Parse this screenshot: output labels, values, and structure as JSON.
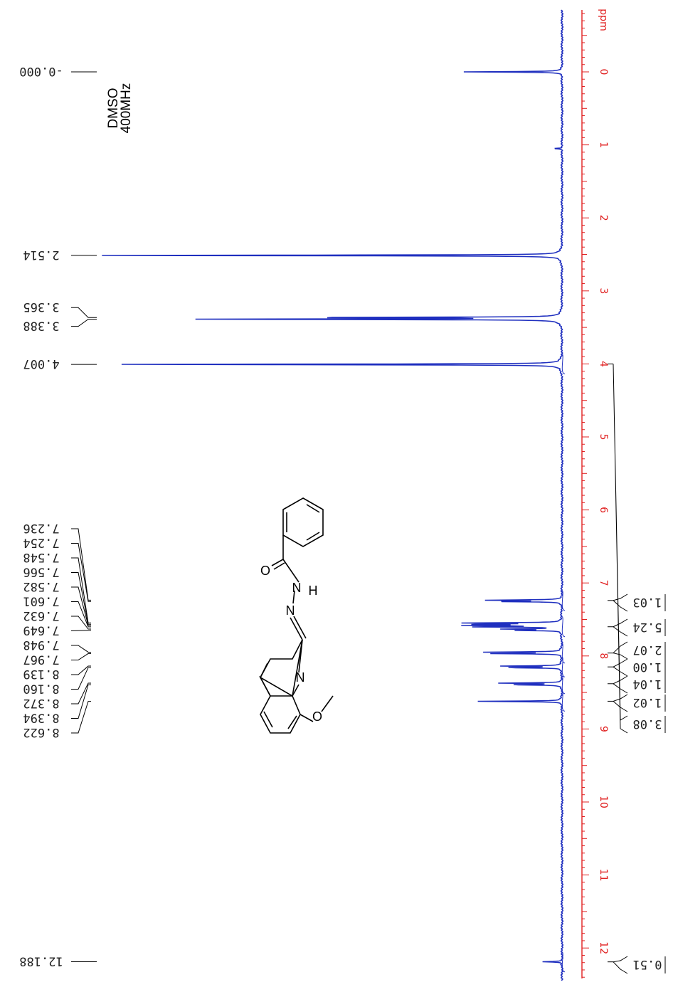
{
  "chart_data": {
    "type": "line",
    "title": "",
    "xlabel": "",
    "ylabel": "",
    "axis": {
      "unit": "ppm",
      "ticks": [
        "0",
        "1",
        "2",
        "3",
        "4",
        "5",
        "6",
        "7",
        "8",
        "9",
        "10",
        "11",
        "12"
      ],
      "range": [
        -0.85,
        12.45
      ],
      "color": "#e02020"
    },
    "solvent": "DMSO",
    "frequency": "400MHz",
    "series": [
      {
        "color": "#1f2fbf",
        "peaks": [
          {
            "ppm": 0.0,
            "intensity": 0.21
          },
          {
            "ppm": 1.05,
            "intensity": 0.02
          },
          {
            "ppm": 2.514,
            "intensity": 1.0
          },
          {
            "ppm": 3.365,
            "intensity": 0.6
          },
          {
            "ppm": 3.388,
            "intensity": 0.8
          },
          {
            "ppm": 4.007,
            "intensity": 1.0
          },
          {
            "ppm": 7.236,
            "intensity": 0.16
          },
          {
            "ppm": 7.254,
            "intensity": 0.15
          },
          {
            "ppm": 7.548,
            "intensity": 0.2
          },
          {
            "ppm": 7.566,
            "intensity": 0.2
          },
          {
            "ppm": 7.582,
            "intensity": 0.19
          },
          {
            "ppm": 7.601,
            "intensity": 0.19
          },
          {
            "ppm": 7.632,
            "intensity": 0.12
          },
          {
            "ppm": 7.649,
            "intensity": 0.11
          },
          {
            "ppm": 7.948,
            "intensity": 0.16
          },
          {
            "ppm": 7.967,
            "intensity": 0.15
          },
          {
            "ppm": 8.139,
            "intensity": 0.13
          },
          {
            "ppm": 8.16,
            "intensity": 0.13
          },
          {
            "ppm": 8.372,
            "intensity": 0.13
          },
          {
            "ppm": 8.394,
            "intensity": 0.12
          },
          {
            "ppm": 8.622,
            "intensity": 0.19
          },
          {
            "ppm": 12.188,
            "intensity": 0.04
          }
        ]
      }
    ],
    "peak_labels": [
      {
        "ppm": 0.0,
        "text": "-0.000"
      },
      {
        "ppm": 2.514,
        "text": "2.514"
      },
      {
        "ppm": 3.365,
        "text": "3.365"
      },
      {
        "ppm": 3.388,
        "text": "3.388"
      },
      {
        "ppm": 4.007,
        "text": "4.007"
      },
      {
        "ppm": 7.236,
        "text": "7.236"
      },
      {
        "ppm": 7.254,
        "text": "7.254"
      },
      {
        "ppm": 7.548,
        "text": "7.548"
      },
      {
        "ppm": 7.566,
        "text": "7.566"
      },
      {
        "ppm": 7.582,
        "text": "7.582"
      },
      {
        "ppm": 7.601,
        "text": "7.601"
      },
      {
        "ppm": 7.632,
        "text": "7.632"
      },
      {
        "ppm": 7.649,
        "text": "7.649"
      },
      {
        "ppm": 7.948,
        "text": "7.948"
      },
      {
        "ppm": 7.967,
        "text": "7.967"
      },
      {
        "ppm": 8.139,
        "text": "8.139"
      },
      {
        "ppm": 8.16,
        "text": "8.160"
      },
      {
        "ppm": 8.372,
        "text": "8.372"
      },
      {
        "ppm": 8.394,
        "text": "8.394"
      },
      {
        "ppm": 8.622,
        "text": "8.622"
      },
      {
        "ppm": 12.188,
        "text": "12.188"
      }
    ],
    "integrals": [
      {
        "ppm": 4.0,
        "text": "3.08"
      },
      {
        "ppm": 7.24,
        "text": "1.03"
      },
      {
        "ppm": 7.6,
        "text": "5.24"
      },
      {
        "ppm": 7.96,
        "text": "2.07"
      },
      {
        "ppm": 8.15,
        "text": "1.00"
      },
      {
        "ppm": 8.38,
        "text": "1.04"
      },
      {
        "ppm": 8.62,
        "text": "1.02"
      },
      {
        "ppm": 12.19,
        "text": "0.51"
      }
    ],
    "structure_atoms": [
      "O",
      "N",
      "N",
      "H",
      "N",
      "O"
    ]
  }
}
